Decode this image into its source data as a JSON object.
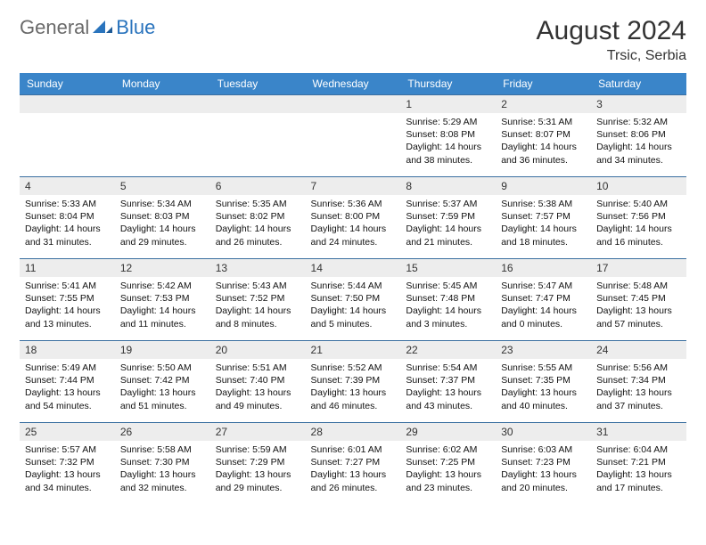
{
  "brand": {
    "part1": "General",
    "part2": "Blue"
  },
  "title": "August 2024",
  "location": "Trsic, Serbia",
  "colors": {
    "header_bg": "#3a85c9",
    "header_text": "#ffffff",
    "daynum_bg": "#ededed",
    "cell_border": "#3a6fa0",
    "brand_gray": "#6a6a6a",
    "brand_blue": "#2a74bd"
  },
  "weekdays": [
    "Sunday",
    "Monday",
    "Tuesday",
    "Wednesday",
    "Thursday",
    "Friday",
    "Saturday"
  ],
  "first_weekday_index": 4,
  "days": [
    {
      "n": 1,
      "sunrise": "5:29 AM",
      "sunset": "8:08 PM",
      "dl_h": 14,
      "dl_m": 38
    },
    {
      "n": 2,
      "sunrise": "5:31 AM",
      "sunset": "8:07 PM",
      "dl_h": 14,
      "dl_m": 36
    },
    {
      "n": 3,
      "sunrise": "5:32 AM",
      "sunset": "8:06 PM",
      "dl_h": 14,
      "dl_m": 34
    },
    {
      "n": 4,
      "sunrise": "5:33 AM",
      "sunset": "8:04 PM",
      "dl_h": 14,
      "dl_m": 31
    },
    {
      "n": 5,
      "sunrise": "5:34 AM",
      "sunset": "8:03 PM",
      "dl_h": 14,
      "dl_m": 29
    },
    {
      "n": 6,
      "sunrise": "5:35 AM",
      "sunset": "8:02 PM",
      "dl_h": 14,
      "dl_m": 26
    },
    {
      "n": 7,
      "sunrise": "5:36 AM",
      "sunset": "8:00 PM",
      "dl_h": 14,
      "dl_m": 24
    },
    {
      "n": 8,
      "sunrise": "5:37 AM",
      "sunset": "7:59 PM",
      "dl_h": 14,
      "dl_m": 21
    },
    {
      "n": 9,
      "sunrise": "5:38 AM",
      "sunset": "7:57 PM",
      "dl_h": 14,
      "dl_m": 18
    },
    {
      "n": 10,
      "sunrise": "5:40 AM",
      "sunset": "7:56 PM",
      "dl_h": 14,
      "dl_m": 16
    },
    {
      "n": 11,
      "sunrise": "5:41 AM",
      "sunset": "7:55 PM",
      "dl_h": 14,
      "dl_m": 13
    },
    {
      "n": 12,
      "sunrise": "5:42 AM",
      "sunset": "7:53 PM",
      "dl_h": 14,
      "dl_m": 11
    },
    {
      "n": 13,
      "sunrise": "5:43 AM",
      "sunset": "7:52 PM",
      "dl_h": 14,
      "dl_m": 8
    },
    {
      "n": 14,
      "sunrise": "5:44 AM",
      "sunset": "7:50 PM",
      "dl_h": 14,
      "dl_m": 5
    },
    {
      "n": 15,
      "sunrise": "5:45 AM",
      "sunset": "7:48 PM",
      "dl_h": 14,
      "dl_m": 3
    },
    {
      "n": 16,
      "sunrise": "5:47 AM",
      "sunset": "7:47 PM",
      "dl_h": 14,
      "dl_m": 0
    },
    {
      "n": 17,
      "sunrise": "5:48 AM",
      "sunset": "7:45 PM",
      "dl_h": 13,
      "dl_m": 57
    },
    {
      "n": 18,
      "sunrise": "5:49 AM",
      "sunset": "7:44 PM",
      "dl_h": 13,
      "dl_m": 54
    },
    {
      "n": 19,
      "sunrise": "5:50 AM",
      "sunset": "7:42 PM",
      "dl_h": 13,
      "dl_m": 51
    },
    {
      "n": 20,
      "sunrise": "5:51 AM",
      "sunset": "7:40 PM",
      "dl_h": 13,
      "dl_m": 49
    },
    {
      "n": 21,
      "sunrise": "5:52 AM",
      "sunset": "7:39 PM",
      "dl_h": 13,
      "dl_m": 46
    },
    {
      "n": 22,
      "sunrise": "5:54 AM",
      "sunset": "7:37 PM",
      "dl_h": 13,
      "dl_m": 43
    },
    {
      "n": 23,
      "sunrise": "5:55 AM",
      "sunset": "7:35 PM",
      "dl_h": 13,
      "dl_m": 40
    },
    {
      "n": 24,
      "sunrise": "5:56 AM",
      "sunset": "7:34 PM",
      "dl_h": 13,
      "dl_m": 37
    },
    {
      "n": 25,
      "sunrise": "5:57 AM",
      "sunset": "7:32 PM",
      "dl_h": 13,
      "dl_m": 34
    },
    {
      "n": 26,
      "sunrise": "5:58 AM",
      "sunset": "7:30 PM",
      "dl_h": 13,
      "dl_m": 32
    },
    {
      "n": 27,
      "sunrise": "5:59 AM",
      "sunset": "7:29 PM",
      "dl_h": 13,
      "dl_m": 29
    },
    {
      "n": 28,
      "sunrise": "6:01 AM",
      "sunset": "7:27 PM",
      "dl_h": 13,
      "dl_m": 26
    },
    {
      "n": 29,
      "sunrise": "6:02 AM",
      "sunset": "7:25 PM",
      "dl_h": 13,
      "dl_m": 23
    },
    {
      "n": 30,
      "sunrise": "6:03 AM",
      "sunset": "7:23 PM",
      "dl_h": 13,
      "dl_m": 20
    },
    {
      "n": 31,
      "sunrise": "6:04 AM",
      "sunset": "7:21 PM",
      "dl_h": 13,
      "dl_m": 17
    }
  ],
  "labels": {
    "sunrise": "Sunrise:",
    "sunset": "Sunset:",
    "daylight_prefix": "Daylight:",
    "hours_word": "hours",
    "and_word": "and",
    "minutes_word": "minutes."
  }
}
